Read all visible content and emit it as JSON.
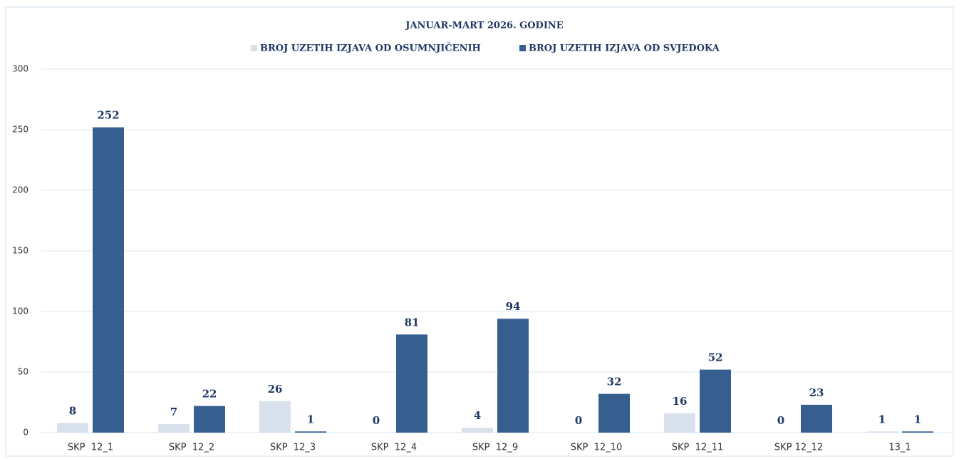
{
  "chart_data": {
    "type": "bar",
    "title": "JANUAR-MART 2026. GODINE",
    "categories": [
      "SKP  12_1",
      "SKP  12_2",
      "SKP  12_3",
      "SKP  12_4",
      "SKP  12_9",
      "SKP  12_10",
      "SKP  12_11",
      "SKP 12_12",
      "13_1"
    ],
    "series": [
      {
        "name": "BROJ UZETIH IZJAVA OD OSUMNJIČENIH",
        "color": "#d9e1ec",
        "values": [
          8,
          7,
          26,
          0,
          4,
          0,
          16,
          0,
          1
        ]
      },
      {
        "name": "BROJ UZETIH IZJAVA OD SVJEDOKA",
        "color": "#365f8f",
        "values": [
          252,
          22,
          1,
          81,
          94,
          32,
          52,
          23,
          1
        ]
      }
    ],
    "ylim": [
      0,
      300
    ],
    "yticks": [
      0,
      50,
      100,
      150,
      200,
      250,
      300
    ],
    "grid": true,
    "legend": "top"
  }
}
